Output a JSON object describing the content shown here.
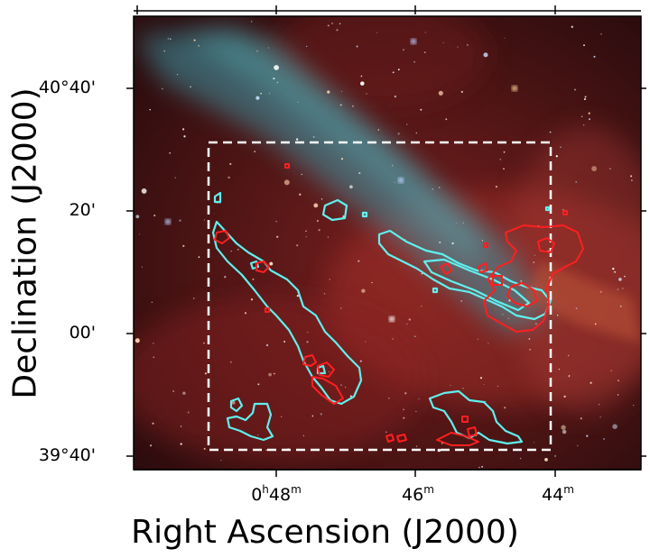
{
  "figure": {
    "x_axis": {
      "title": "Right Ascension (J2000)",
      "ticks": [
        {
          "main": "0",
          "sup1": "h",
          "mid": "48",
          "sup2": "m"
        },
        {
          "main": "",
          "sup1": "",
          "mid": "46",
          "sup2": "m"
        },
        {
          "main": "",
          "sup1": "",
          "mid": "44",
          "sup2": "m"
        }
      ]
    },
    "y_axis": {
      "title": "Declination (J2000)",
      "ticks": [
        "40°40'",
        "20'",
        "00'",
        "39°40'"
      ]
    },
    "overlay": {
      "region_box": "dashed rectangle",
      "contour_colors": {
        "cyan": "#5ff0ee",
        "red": "#ff1f1f"
      },
      "box_color": "#ffffff"
    },
    "background": {
      "base_color": "#5a1414",
      "filament_color": "#4aa3b0"
    }
  }
}
